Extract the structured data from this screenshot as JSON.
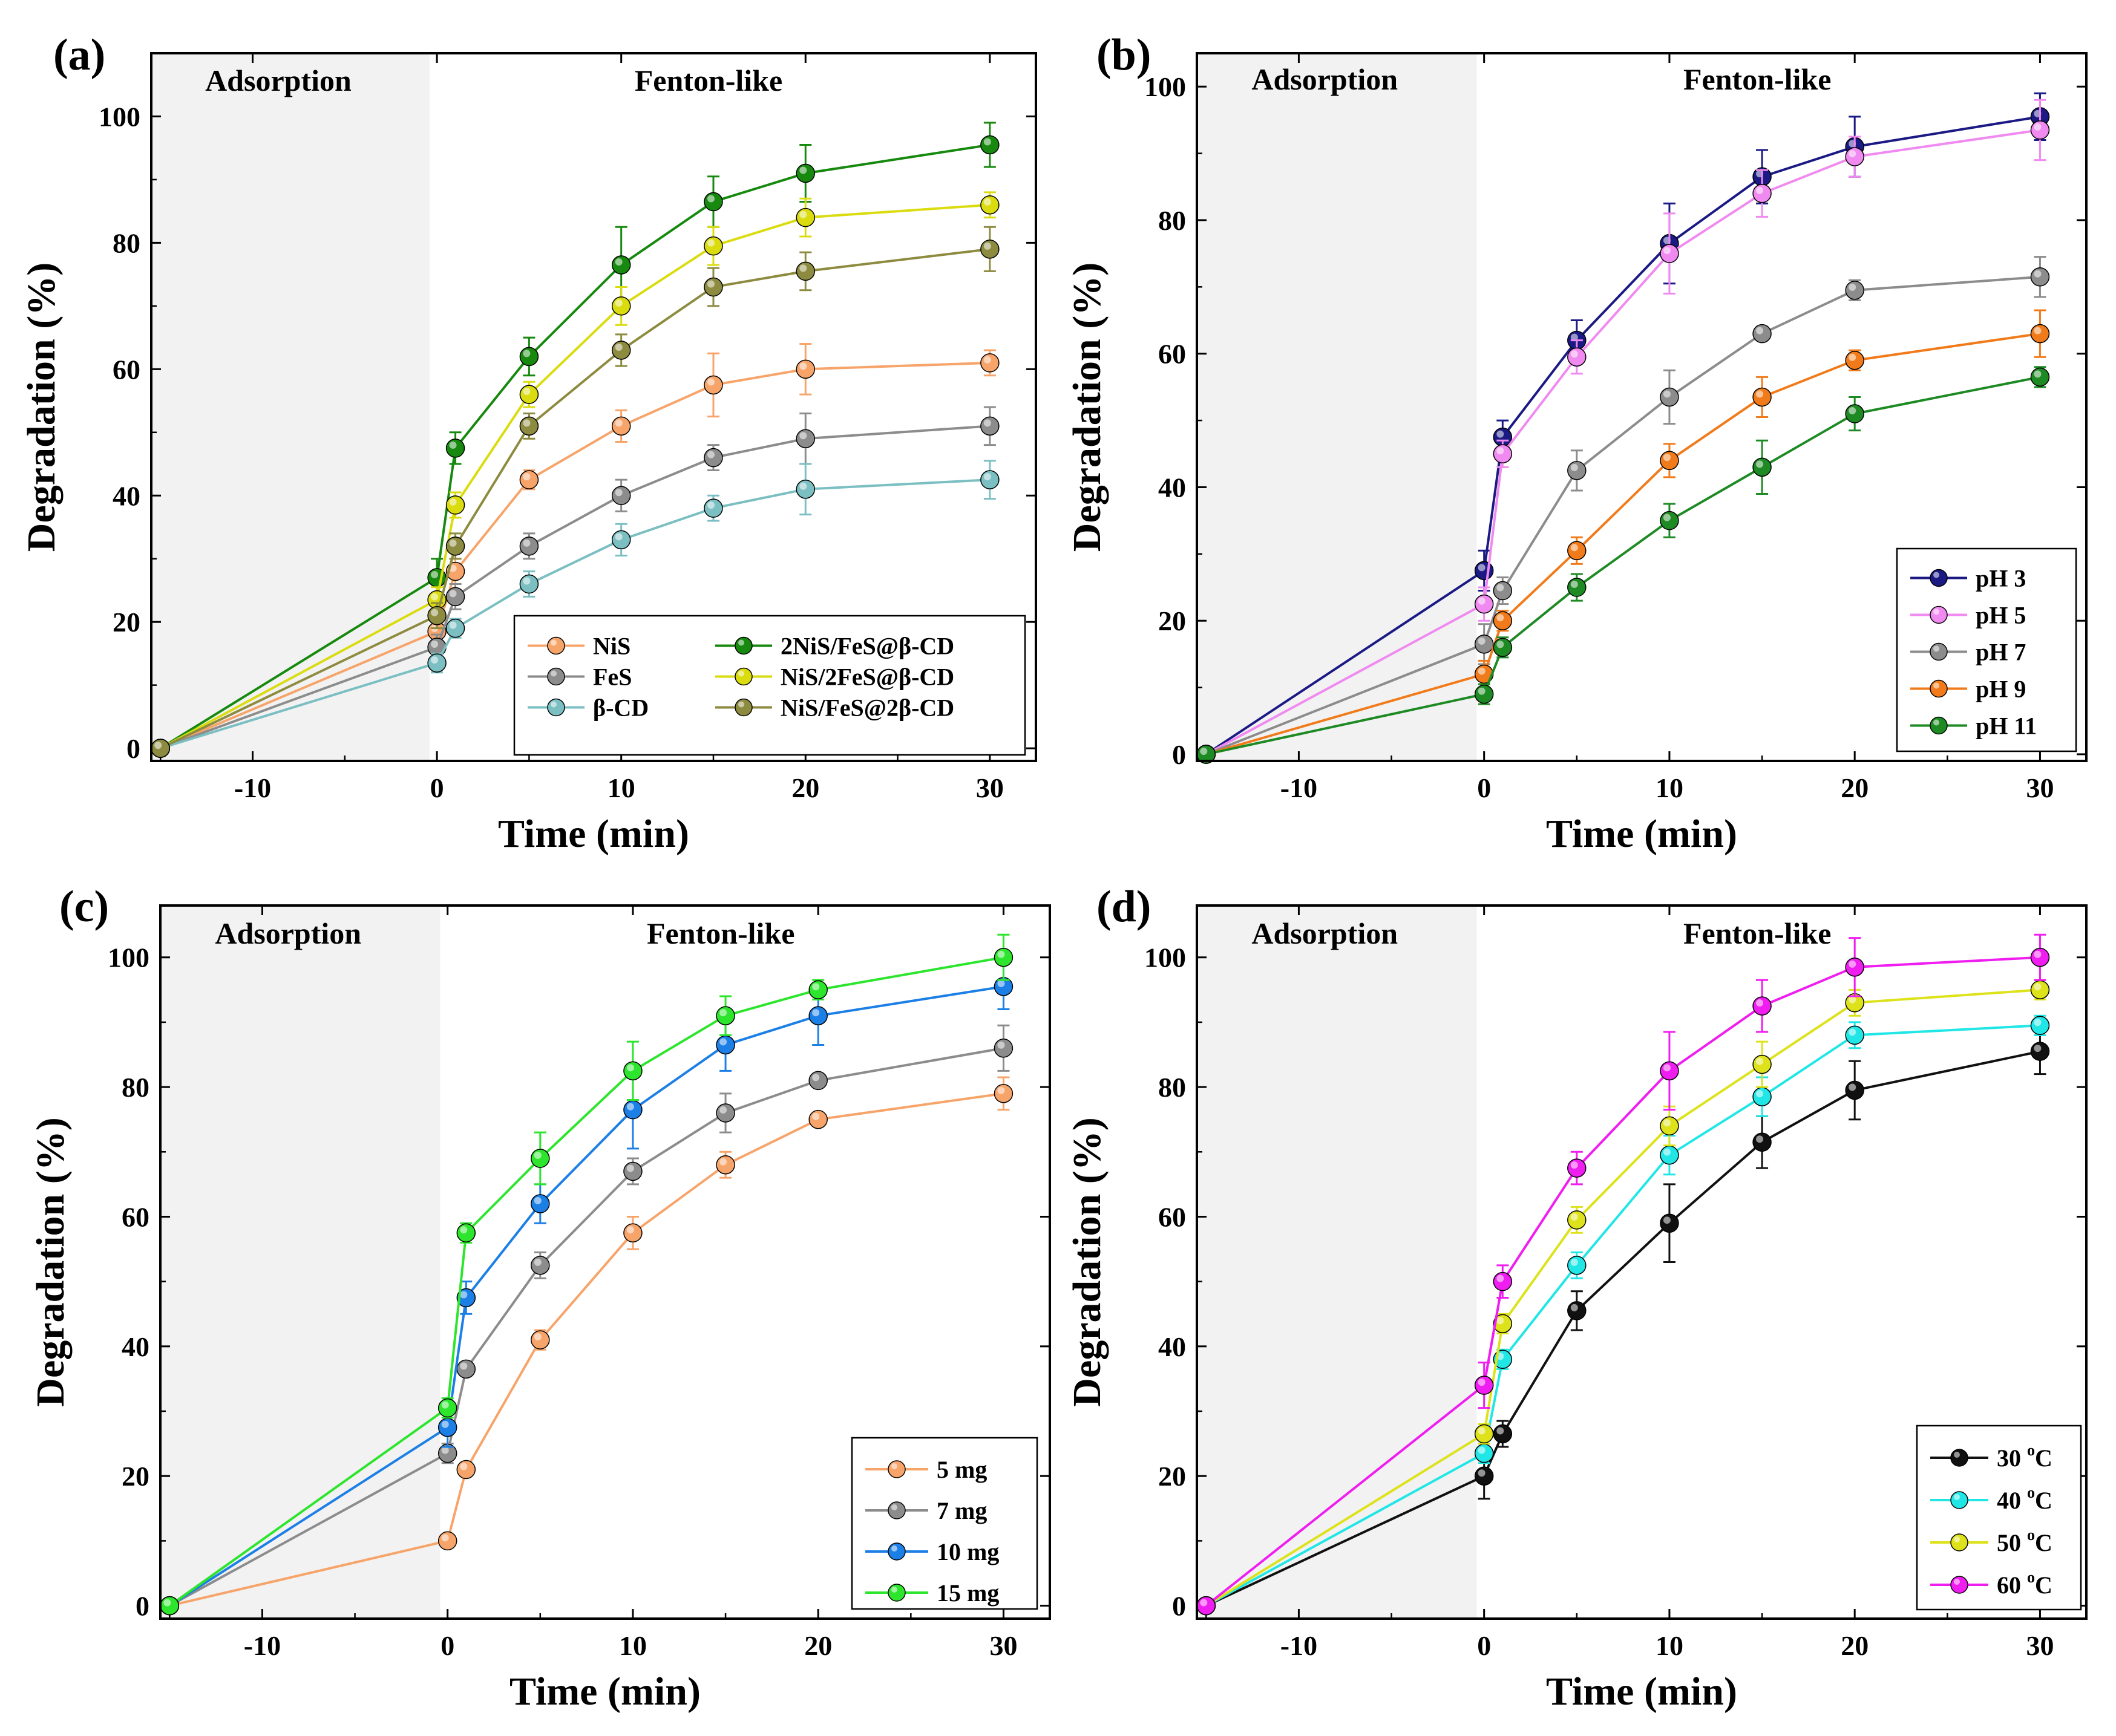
{
  "chart_data": [
    {
      "type": "line",
      "panel_label": "(a)",
      "xlabel": "Time (min)",
      "ylabel": "Degradation (%)",
      "xlim": [
        -15.5,
        32.5
      ],
      "ylim": [
        -2,
        110
      ],
      "xticks": [
        -10,
        0,
        10,
        20,
        30
      ],
      "xtick_labels": [
        "-10",
        "0",
        "10",
        "20",
        "30"
      ],
      "yticks": [
        0,
        20,
        40,
        60,
        80,
        100
      ],
      "ytick_labels": [
        "0",
        "20",
        "40",
        "60",
        "80",
        "100"
      ],
      "regions": [
        {
          "label": "Adsorption",
          "x_start": -15.5,
          "x_end": -0.4,
          "shaded": true
        },
        {
          "label": "Fenton-like",
          "x_start": -0.4,
          "x_end": 32.5,
          "shaded": false
        }
      ],
      "legend": {
        "position": "bottom-right",
        "columns": 2
      },
      "x": [
        -15,
        0,
        1,
        5,
        10,
        15,
        20,
        30
      ],
      "series": [
        {
          "name": "NiS",
          "color": "#F7A46A",
          "values": [
            0,
            18.5,
            28,
            42.5,
            51,
            57.5,
            60,
            61
          ],
          "errors": [
            0,
            2,
            2,
            1.5,
            2.5,
            5,
            4,
            2
          ]
        },
        {
          "name": "FeS",
          "color": "#8C8C8C",
          "values": [
            0,
            16,
            24,
            32,
            40,
            46,
            49,
            51
          ],
          "errors": [
            0,
            2,
            2,
            2,
            2.5,
            2,
            4,
            3
          ]
        },
        {
          "name": "β-CD",
          "color": "#7BBFC2",
          "values": [
            0,
            13.5,
            19,
            26,
            33,
            38,
            41,
            42.5
          ],
          "errors": [
            0,
            1.5,
            1.5,
            2,
            2.5,
            2,
            4,
            3
          ]
        },
        {
          "name": "2NiS/FeS@β-CD",
          "color": "#16890E",
          "values": [
            0,
            27,
            47.5,
            62,
            76.5,
            86.5,
            91,
            95.5
          ],
          "errors": [
            0,
            3,
            2.5,
            3,
            6,
            4,
            4.5,
            3.5
          ]
        },
        {
          "name": "NiS/2FeS@β-CD",
          "color": "#DADC10",
          "values": [
            0,
            23.5,
            38.5,
            56,
            70,
            79.5,
            84,
            86
          ],
          "errors": [
            0,
            2,
            2,
            2,
            3,
            3,
            3,
            2
          ]
        },
        {
          "name": "NiS/FeS@2β-CD",
          "color": "#8D8B3F",
          "values": [
            0,
            21,
            32,
            51,
            63,
            73,
            75.5,
            79
          ],
          "errors": [
            0,
            2,
            2,
            2,
            2.5,
            3,
            3,
            3.5
          ]
        }
      ]
    },
    {
      "type": "line",
      "panel_label": "(b)",
      "xlabel": "Time (min)",
      "ylabel": "Degradation (%)",
      "xlim": [
        -15.5,
        32.5
      ],
      "ylim": [
        -1,
        105
      ],
      "xticks": [
        -10,
        0,
        10,
        20,
        30
      ],
      "xtick_labels": [
        "-10",
        "0",
        "10",
        "20",
        "30"
      ],
      "yticks": [
        0,
        20,
        40,
        60,
        80,
        100
      ],
      "ytick_labels": [
        "0",
        "20",
        "40",
        "60",
        "80",
        "100"
      ],
      "regions": [
        {
          "label": "Adsorption",
          "x_start": -15.5,
          "x_end": -0.4,
          "shaded": true
        },
        {
          "label": "Fenton-like",
          "x_start": -0.4,
          "x_end": 32.5,
          "shaded": false
        }
      ],
      "legend": {
        "position": "bottom-right",
        "columns": 1
      },
      "x": [
        -15,
        0,
        1,
        5,
        10,
        15,
        20,
        30
      ],
      "series": [
        {
          "name": "pH 3",
          "color": "#1B1A84",
          "values": [
            0,
            27.5,
            47.5,
            62,
            76.5,
            86.5,
            91,
            95.5
          ],
          "errors": [
            0,
            3,
            2.5,
            3,
            6,
            4,
            4.5,
            3.5
          ]
        },
        {
          "name": "pH 5",
          "color": "#F08AF0",
          "values": [
            0,
            22.5,
            45,
            59.5,
            75,
            84,
            89.5,
            93.5
          ],
          "errors": [
            0,
            2.5,
            2,
            2.5,
            6,
            3.5,
            3,
            4.5
          ]
        },
        {
          "name": "pH 7",
          "color": "#8C8C8C",
          "values": [
            0,
            16.5,
            24.5,
            42.5,
            53.5,
            63,
            69.5,
            71.5
          ],
          "errors": [
            0,
            3,
            2,
            3,
            4,
            1,
            1.5,
            3
          ]
        },
        {
          "name": "pH 9",
          "color": "#F17B1B",
          "values": [
            0,
            12,
            20,
            30.5,
            44,
            53.5,
            59,
            63
          ],
          "errors": [
            0,
            2,
            1.5,
            2,
            2.5,
            3,
            1.5,
            3.5
          ]
        },
        {
          "name": "pH 11",
          "color": "#1E8A24",
          "values": [
            0,
            9,
            16,
            25,
            35,
            43,
            51,
            56.5
          ],
          "errors": [
            0,
            1.5,
            1.5,
            2,
            2.5,
            4,
            2.5,
            1.5
          ]
        }
      ]
    },
    {
      "type": "line",
      "panel_label": "(c)",
      "xlabel": "Time (min)",
      "ylabel": "Degradation (%)",
      "xlim": [
        -15.5,
        32.5
      ],
      "ylim": [
        -2,
        108
      ],
      "xticks": [
        -10,
        0,
        10,
        20,
        30
      ],
      "xtick_labels": [
        "-10",
        "0",
        "10",
        "20",
        "30"
      ],
      "yticks": [
        0,
        20,
        40,
        60,
        80,
        100
      ],
      "ytick_labels": [
        "0",
        "20",
        "40",
        "60",
        "80",
        "100"
      ],
      "regions": [
        {
          "label": "Adsorption",
          "x_start": -15.5,
          "x_end": -0.4,
          "shaded": true
        },
        {
          "label": "Fenton-like",
          "x_start": -0.4,
          "x_end": 32.5,
          "shaded": false
        }
      ],
      "legend": {
        "position": "bottom-right",
        "columns": 1
      },
      "x": [
        -15,
        0,
        1,
        5,
        10,
        15,
        20,
        30
      ],
      "series": [
        {
          "name": "5 mg",
          "color": "#F7A46A",
          "values": [
            0,
            10,
            21,
            41,
            57.5,
            68,
            75,
            79
          ],
          "errors": [
            0,
            0,
            1,
            1.5,
            2.5,
            2,
            1,
            2.5
          ]
        },
        {
          "name": "7 mg",
          "color": "#8C8C8C",
          "values": [
            0,
            23.5,
            36.5,
            52.5,
            67,
            76,
            81,
            86
          ],
          "errors": [
            0,
            1.5,
            1,
            2,
            2,
            3,
            1,
            3.5
          ]
        },
        {
          "name": "10 mg",
          "color": "#1C7FE6",
          "values": [
            0,
            27.5,
            47.5,
            62,
            76.5,
            86.5,
            91,
            95.5
          ],
          "errors": [
            0,
            3,
            2.5,
            3,
            6,
            4,
            4.5,
            3.5
          ]
        },
        {
          "name": "15 mg",
          "color": "#2CE52C",
          "values": [
            0,
            30.5,
            57.5,
            69,
            82.5,
            91,
            95,
            100
          ],
          "errors": [
            0,
            1.5,
            1.5,
            4,
            4.5,
            3,
            1.5,
            3.5
          ]
        }
      ]
    },
    {
      "type": "line",
      "panel_label": "(d)",
      "xlabel": "Time (min)",
      "ylabel": "Degradation (%)",
      "xlim": [
        -15.5,
        32.5
      ],
      "ylim": [
        -2,
        108
      ],
      "xticks": [
        -10,
        0,
        10,
        20,
        30
      ],
      "xtick_labels": [
        "-10",
        "0",
        "10",
        "20",
        "30"
      ],
      "yticks": [
        0,
        20,
        40,
        60,
        80,
        100
      ],
      "ytick_labels": [
        "0",
        "20",
        "40",
        "60",
        "80",
        "100"
      ],
      "regions": [
        {
          "label": "Adsorption",
          "x_start": -15.5,
          "x_end": -0.4,
          "shaded": true
        },
        {
          "label": "Fenton-like",
          "x_start": -0.4,
          "x_end": 32.5,
          "shaded": false
        }
      ],
      "legend": {
        "position": "bottom-right",
        "columns": 1
      },
      "x": [
        -15,
        0,
        1,
        5,
        10,
        15,
        20,
        30
      ],
      "series": [
        {
          "name": "30 °C",
          "label_num": "30 ",
          "label_unit": "C",
          "color": "#111111",
          "values": [
            0,
            20,
            26.5,
            45.5,
            59,
            71.5,
            79.5,
            85.5
          ],
          "errors": [
            0,
            3.5,
            2,
            3,
            6,
            4,
            4.5,
            3.5
          ]
        },
        {
          "name": "40 °C",
          "label_num": "40 ",
          "label_unit": "C",
          "color": "#21E6E6",
          "values": [
            0,
            23.5,
            38,
            52.5,
            69.5,
            78.5,
            88,
            89.5
          ],
          "errors": [
            0,
            1.5,
            1.5,
            2,
            3,
            3,
            2,
            1.5
          ]
        },
        {
          "name": "50 °C",
          "label_num": "50 ",
          "label_unit": "C",
          "color": "#DDE21A",
          "values": [
            0,
            26.5,
            43.5,
            59.5,
            74,
            83.5,
            93,
            95
          ],
          "errors": [
            0,
            1.5,
            1.5,
            2,
            3,
            3.5,
            2,
            1.5
          ]
        },
        {
          "name": "60 °C",
          "label_num": "60 ",
          "label_unit": "C",
          "color": "#F01DF0",
          "values": [
            0,
            34,
            50,
            67.5,
            82.5,
            92.5,
            98.5,
            100
          ],
          "errors": [
            0,
            3.5,
            2.5,
            2.5,
            6,
            4,
            4.5,
            3.5
          ]
        }
      ]
    }
  ]
}
